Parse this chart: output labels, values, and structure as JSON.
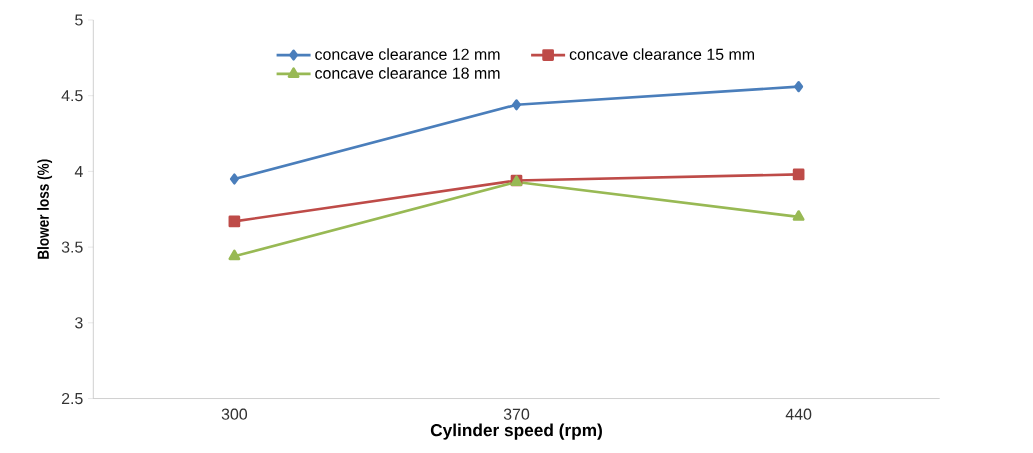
{
  "chart_data": {
    "type": "line",
    "xlabel": "Cylinder speed (rpm)",
    "ylabel": "Blower loss (%)",
    "categories": [
      "300",
      "370",
      "440"
    ],
    "series": [
      {
        "name": "concave clearance 12 mm",
        "color": "#4a7ebb",
        "marker": "diamond",
        "values": [
          3.95,
          4.44,
          4.56
        ]
      },
      {
        "name": "concave clearance 15 mm",
        "color": "#be4b48",
        "marker": "square",
        "values": [
          3.67,
          3.94,
          3.98
        ]
      },
      {
        "name": "concave clearance 18 mm",
        "color": "#98b954",
        "marker": "triangle",
        "values": [
          3.44,
          3.93,
          3.7
        ]
      }
    ],
    "ylim": [
      2.5,
      5
    ],
    "yticks": [
      2.5,
      3,
      3.5,
      4,
      4.5,
      5
    ],
    "grid": false,
    "legend": "top"
  }
}
